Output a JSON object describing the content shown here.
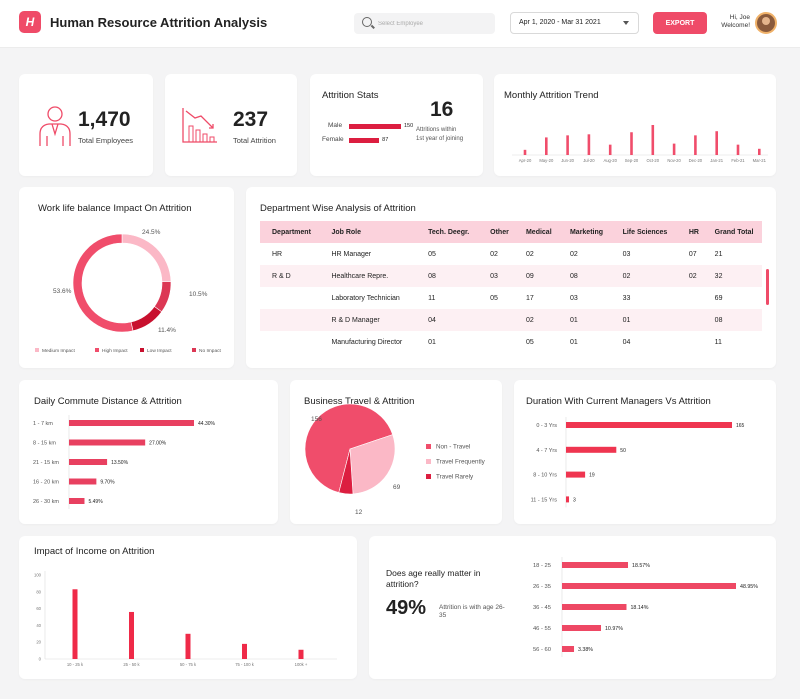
{
  "header": {
    "logo": "H",
    "title": "Human Resource Attrition Analysis",
    "search_placeholder": "Select Employee",
    "date_range": "Apr 1, 2020 - Mar 31 2021",
    "export_label": "EXPORT",
    "greeting_line1": "Hi, Joe",
    "greeting_line2": "Welcome!"
  },
  "colors": {
    "accent": "#ef4b68",
    "dark": "#c8102e",
    "light": "#fbb8c6",
    "mid": "#f04d6b"
  },
  "kpis": {
    "total_employees": {
      "value": "1,470",
      "label": "Total Employees",
      "icon": "employee-icon"
    },
    "total_attrition": {
      "value": "237",
      "label": "Total Attrition",
      "icon": "declining-chart-icon"
    }
  },
  "attrition_stats": {
    "title": "Attrition Stats",
    "male_label": "Male",
    "male_value": 150,
    "female_label": "Female",
    "female_value": 87,
    "big_value": "16",
    "big_line1": "Attritions within",
    "big_line2": "1st year of joining"
  },
  "department_table": {
    "title": "Department Wise Analysis of Attrition",
    "headers": [
      "Department",
      "Job Role",
      "Tech. Deegr.",
      "Other",
      "Medical",
      "Marketing",
      "Life Sciences",
      "HR",
      "Grand Total"
    ],
    "rows": [
      [
        "HR",
        "HR Manager",
        "05",
        "02",
        "02",
        "02",
        "03",
        "07",
        "21"
      ],
      [
        "R & D",
        "Healthcare Repre.",
        "08",
        "03",
        "09",
        "08",
        "02",
        "02",
        "32"
      ],
      [
        "",
        "Laboratory Technician",
        "11",
        "05",
        "17",
        "03",
        "33",
        "",
        "69"
      ],
      [
        "",
        "R & D Manager",
        "04",
        "",
        "02",
        "01",
        "01",
        "",
        "08"
      ],
      [
        "",
        "Manufacturing Director",
        "01",
        "",
        "05",
        "01",
        "04",
        "",
        "11"
      ]
    ]
  },
  "chart_data": [
    {
      "id": "monthly_trend",
      "type": "bar",
      "title": "Monthly Attrition Trend",
      "categories": [
        "Apr-20",
        "May-20",
        "Jun-20",
        "Jul-20",
        "Aug-20",
        "Sep-20",
        "Oct-20",
        "Nov-20",
        "Dec-20",
        "Jan-21",
        "Feb-21",
        "Mar-21"
      ],
      "values": [
        5,
        17,
        19,
        20,
        10,
        22,
        29,
        11,
        19,
        23,
        10,
        6
      ]
    },
    {
      "id": "work_life",
      "type": "pie",
      "title": "Work life balance Impact On Attrition",
      "labels": [
        "Medium Impact",
        "High Impact",
        "Low Impact",
        "No Impact"
      ],
      "values": [
        24.5,
        53.6,
        11.4,
        10.5
      ],
      "value_labels": [
        "24.5%",
        "53.6%",
        "11.4%",
        "10.5%"
      ],
      "colors": [
        "#fbb8c6",
        "#f04d6b",
        "#c8102e",
        "#dc3754"
      ]
    },
    {
      "id": "commute",
      "type": "bar",
      "title": "Daily Commute Distance & Attrition",
      "categories": [
        "1 - 7 km",
        "8 - 15 km",
        "21 - 15 km",
        "16 - 20 km",
        "26 - 30 km"
      ],
      "values": [
        44.3,
        27.0,
        13.5,
        9.7,
        5.49
      ],
      "value_labels": [
        "44.30%",
        "27.00%",
        "13.50%",
        "9.70%",
        "5.49%"
      ]
    },
    {
      "id": "travel",
      "type": "pie",
      "title": "Business Travel & Attrition",
      "labels": [
        "Non - Travel",
        "Travel Frequently",
        "Travel Rarely"
      ],
      "values": [
        156,
        69,
        12
      ],
      "value_labels": [
        "156",
        "69",
        "12"
      ],
      "colors": [
        "#f04d6b",
        "#fbb8c6",
        "#dc1e40"
      ]
    },
    {
      "id": "managers",
      "type": "bar",
      "title": "Duration With Current Managers Vs Attrition",
      "categories": [
        "0 - 3 Yrs",
        "4 - 7 Yrs",
        "8 - 10 Yrs",
        "11 - 15 Yrs"
      ],
      "values": [
        165,
        50,
        19,
        3
      ],
      "value_labels": [
        "165",
        "50",
        "19",
        "3"
      ]
    },
    {
      "id": "income",
      "type": "bar",
      "title": "Impact of Income on Attrition",
      "categories": [
        "10 - 25 k",
        "25 - 50 k",
        "50 - 75 k",
        "75 - 100 k",
        "100k +"
      ],
      "values": [
        83,
        56,
        30,
        18,
        11
      ],
      "yticks": [
        "0",
        "20",
        "40",
        "60",
        "80",
        "100"
      ],
      "ylim": [
        0,
        100
      ]
    },
    {
      "id": "age",
      "type": "bar",
      "title": "",
      "categories": [
        "18 - 25",
        "26 - 35",
        "36 - 45",
        "46 - 55",
        "56 - 60"
      ],
      "values": [
        18.57,
        48.95,
        18.14,
        10.97,
        3.38
      ],
      "value_labels": [
        "18.57%",
        "48.95%",
        "18.14%",
        "10.97%",
        "3.38%"
      ]
    }
  ],
  "age_card": {
    "question": "Does age really matter in attrition?",
    "value": "49%",
    "sub": "Attrition is with age 26-35"
  }
}
